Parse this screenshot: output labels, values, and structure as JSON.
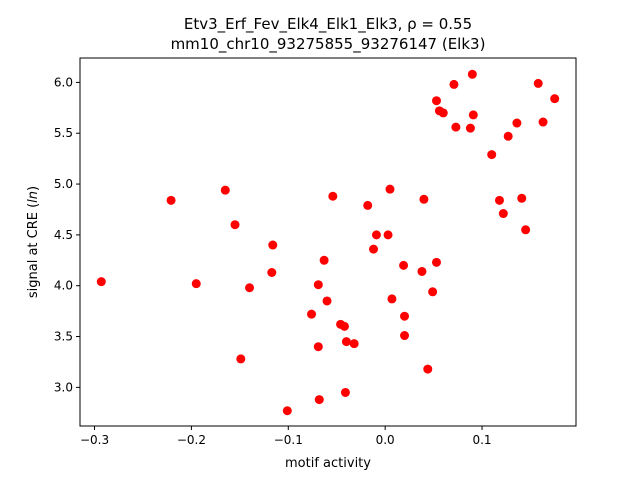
{
  "chart_data": {
    "type": "scatter",
    "title_line1": "Etv3_Erf_Fev_Elk4_Elk1_Elk3, ρ = 0.55",
    "title_line2": "mm10_chr10_93275855_93276147 (Elk3)",
    "xlabel": "motif activity",
    "ylabel": "signal at CRE (ln)",
    "xlim": [
      -0.315,
      0.197
    ],
    "ylim": [
      2.62,
      6.24
    ],
    "xticks": [
      -0.3,
      -0.2,
      -0.1,
      0.0,
      0.1
    ],
    "xtick_labels": [
      "−0.3",
      "−0.2",
      "−0.1",
      "0.0",
      "0.1"
    ],
    "yticks": [
      3.0,
      3.5,
      4.0,
      4.5,
      5.0,
      5.5,
      6.0
    ],
    "ytick_labels": [
      "3.0",
      "3.5",
      "4.0",
      "4.5",
      "5.0",
      "5.5",
      "6.0"
    ],
    "grid": false,
    "marker_color": "#ff0000",
    "points": [
      {
        "x": -0.293,
        "y": 4.04
      },
      {
        "x": -0.221,
        "y": 4.84
      },
      {
        "x": -0.195,
        "y": 4.02
      },
      {
        "x": -0.165,
        "y": 4.94
      },
      {
        "x": -0.155,
        "y": 4.6
      },
      {
        "x": -0.149,
        "y": 3.28
      },
      {
        "x": -0.14,
        "y": 3.98
      },
      {
        "x": -0.116,
        "y": 4.4
      },
      {
        "x": -0.117,
        "y": 4.13
      },
      {
        "x": -0.101,
        "y": 2.77
      },
      {
        "x": -0.076,
        "y": 3.72
      },
      {
        "x": -0.069,
        "y": 4.01
      },
      {
        "x": -0.069,
        "y": 3.4
      },
      {
        "x": -0.068,
        "y": 2.88
      },
      {
        "x": -0.063,
        "y": 4.25
      },
      {
        "x": -0.06,
        "y": 3.85
      },
      {
        "x": -0.054,
        "y": 4.88
      },
      {
        "x": -0.046,
        "y": 3.62
      },
      {
        "x": -0.042,
        "y": 3.6
      },
      {
        "x": -0.04,
        "y": 3.45
      },
      {
        "x": -0.041,
        "y": 2.95
      },
      {
        "x": -0.032,
        "y": 3.43
      },
      {
        "x": -0.018,
        "y": 4.79
      },
      {
        "x": -0.012,
        "y": 4.36
      },
      {
        "x": -0.009,
        "y": 4.5
      },
      {
        "x": 0.003,
        "y": 4.5
      },
      {
        "x": 0.005,
        "y": 4.95
      },
      {
        "x": 0.007,
        "y": 3.87
      },
      {
        "x": 0.019,
        "y": 4.2
      },
      {
        "x": 0.02,
        "y": 3.7
      },
      {
        "x": 0.02,
        "y": 3.51
      },
      {
        "x": 0.038,
        "y": 4.14
      },
      {
        "x": 0.04,
        "y": 4.85
      },
      {
        "x": 0.044,
        "y": 3.18
      },
      {
        "x": 0.049,
        "y": 3.94
      },
      {
        "x": 0.053,
        "y": 4.23
      },
      {
        "x": 0.053,
        "y": 5.82
      },
      {
        "x": 0.056,
        "y": 5.72
      },
      {
        "x": 0.06,
        "y": 5.7
      },
      {
        "x": 0.071,
        "y": 5.98
      },
      {
        "x": 0.073,
        "y": 5.56
      },
      {
        "x": 0.088,
        "y": 5.55
      },
      {
        "x": 0.09,
        "y": 6.08
      },
      {
        "x": 0.091,
        "y": 5.68
      },
      {
        "x": 0.11,
        "y": 5.29
      },
      {
        "x": 0.118,
        "y": 4.84
      },
      {
        "x": 0.122,
        "y": 4.71
      },
      {
        "x": 0.127,
        "y": 5.47
      },
      {
        "x": 0.136,
        "y": 5.6
      },
      {
        "x": 0.141,
        "y": 4.86
      },
      {
        "x": 0.145,
        "y": 4.55
      },
      {
        "x": 0.158,
        "y": 5.99
      },
      {
        "x": 0.163,
        "y": 5.61
      },
      {
        "x": 0.175,
        "y": 5.84
      }
    ]
  }
}
